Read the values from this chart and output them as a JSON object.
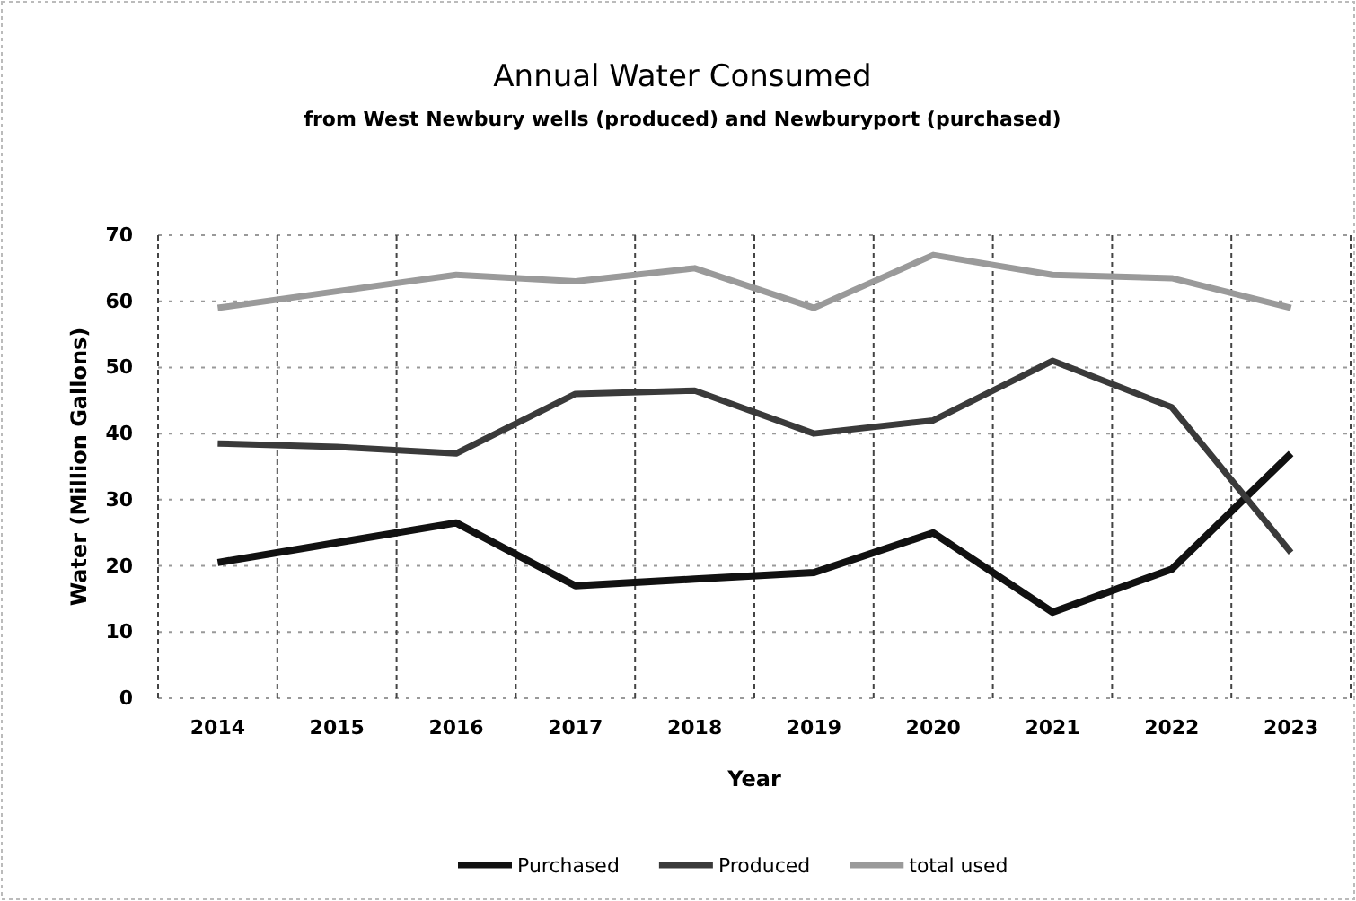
{
  "chart_data": {
    "type": "line",
    "title": "Annual Water Consumed",
    "subtitle": "from West Newbury wells (produced) and Newburyport (purchased)",
    "xlabel": "Year",
    "ylabel": "Water (Million Gallons)",
    "categories": [
      "2014",
      "2015",
      "2016",
      "2017",
      "2018",
      "2019",
      "2020",
      "2021",
      "2022",
      "2023"
    ],
    "series": [
      {
        "name": "Purchased",
        "color": "#111111",
        "values": [
          20.5,
          23.5,
          26.5,
          17,
          18,
          19,
          25,
          13,
          19.5,
          37
        ]
      },
      {
        "name": "Produced",
        "color": "#3a3a3a",
        "values": [
          38.5,
          38,
          37,
          46,
          46.5,
          40,
          42,
          51,
          44,
          22
        ]
      },
      {
        "name": "total used",
        "color": "#9a9a9a",
        "values": [
          59,
          61.5,
          64,
          63,
          65,
          59,
          67,
          64,
          63.5,
          59
        ]
      }
    ],
    "ylim": [
      0,
      70
    ],
    "yticks": [
      0,
      10,
      20,
      30,
      40,
      50,
      60,
      70
    ],
    "grid": true,
    "legend": "bottom",
    "marker": "none",
    "line_style": "solid"
  }
}
